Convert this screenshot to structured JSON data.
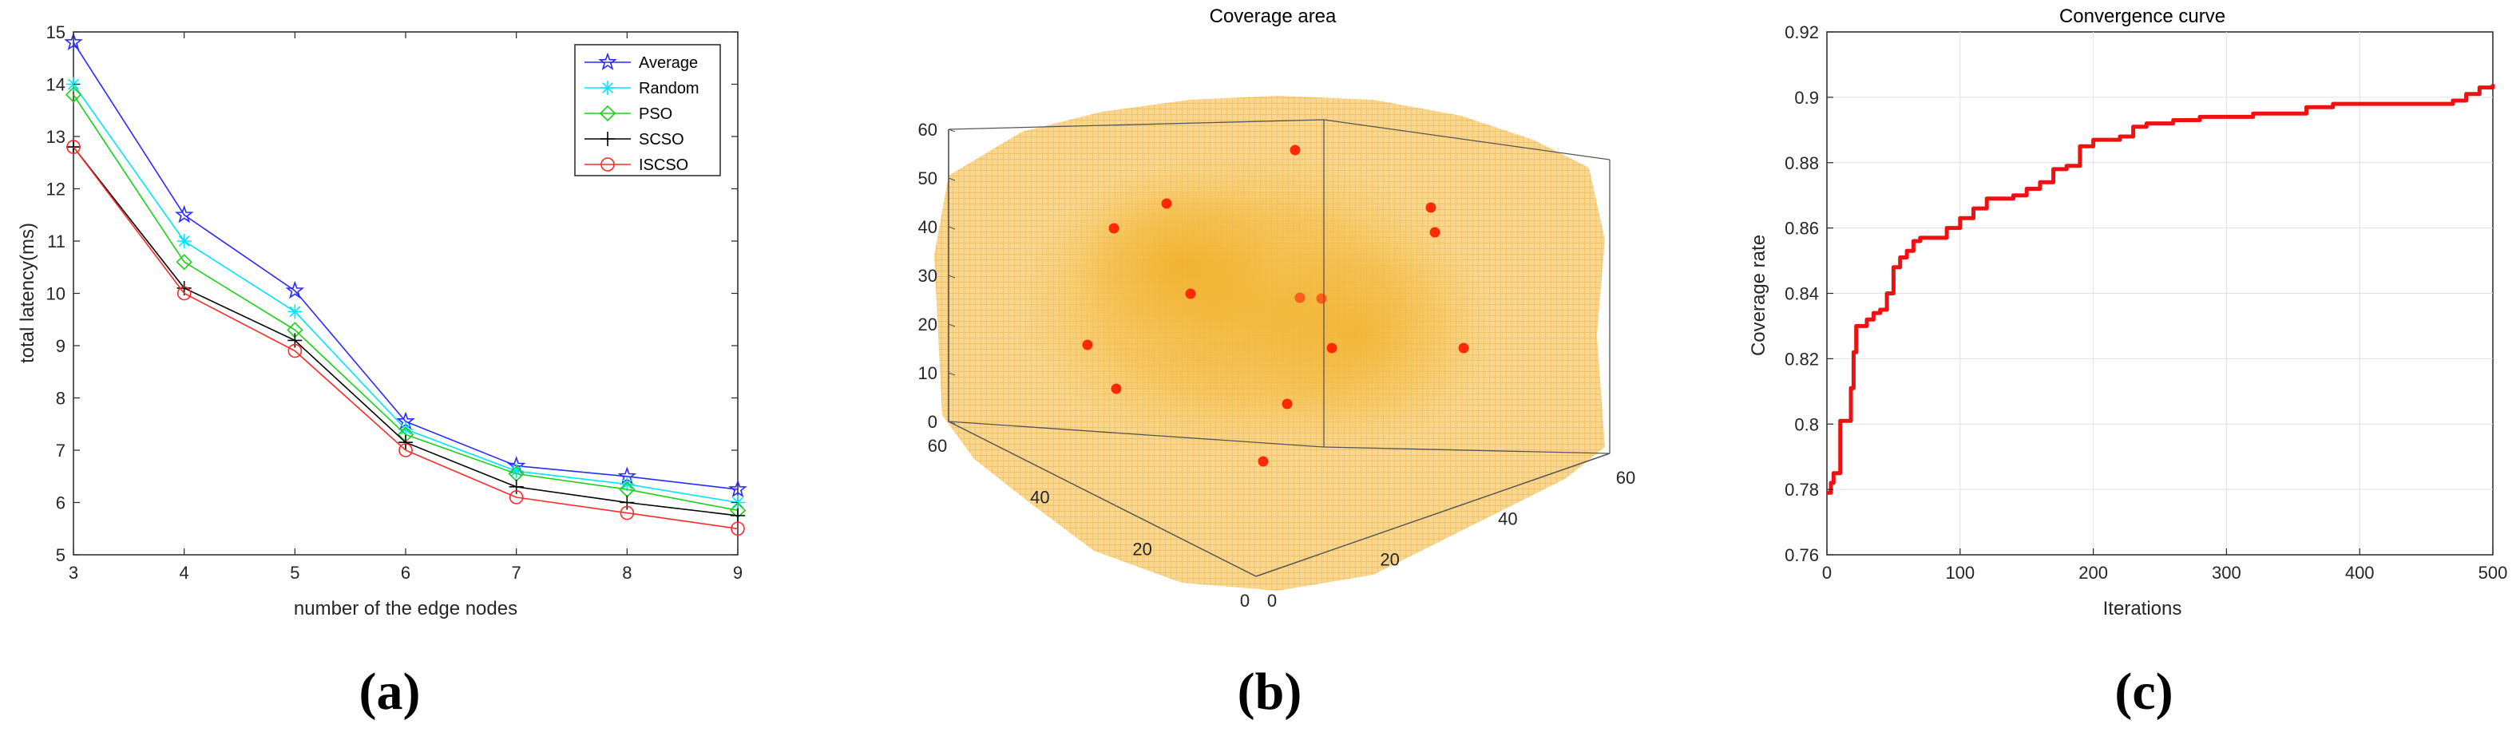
{
  "chart_data": [
    {
      "type": "line",
      "panel_label": "(a)",
      "title": "",
      "xlabel": "number of the edge nodes",
      "ylabel": "total latency(ms)",
      "xlim": [
        3,
        9
      ],
      "ylim": [
        5,
        15
      ],
      "xticks": [
        3,
        4,
        5,
        6,
        7,
        8,
        9
      ],
      "yticks": [
        5,
        6,
        7,
        8,
        9,
        10,
        11,
        12,
        13,
        14,
        15
      ],
      "legend_position": "top-right",
      "x": [
        3,
        4,
        5,
        6,
        7,
        8,
        9
      ],
      "series": [
        {
          "name": "Average",
          "color": "#2a2aff",
          "marker": "star",
          "values": [
            14.8,
            11.5,
            10.05,
            7.55,
            6.7,
            6.5,
            6.25
          ]
        },
        {
          "name": "Random",
          "color": "#00e5ff",
          "marker": "asterisk",
          "values": [
            14.0,
            11.0,
            9.65,
            7.4,
            6.6,
            6.35,
            6.0
          ]
        },
        {
          "name": "PSO",
          "color": "#19d219",
          "marker": "diamond",
          "values": [
            13.8,
            10.6,
            9.3,
            7.3,
            6.55,
            6.25,
            5.85
          ]
        },
        {
          "name": "SCSO",
          "color": "#000000",
          "marker": "plus",
          "values": [
            12.8,
            10.1,
            9.1,
            7.15,
            6.3,
            6.0,
            5.75
          ]
        },
        {
          "name": "ISCSO",
          "color": "#ff2a2a",
          "marker": "circle",
          "values": [
            12.8,
            10.0,
            8.9,
            7.0,
            6.1,
            5.8,
            5.5
          ]
        }
      ]
    },
    {
      "type": "scatter",
      "panel_label": "(b)",
      "title": "Coverage area",
      "projection": "3d",
      "zlim": [
        0,
        60
      ],
      "zticks": [
        0,
        10,
        20,
        30,
        40,
        50,
        60
      ],
      "xticks": [
        0,
        20,
        40,
        60
      ],
      "yticks": [
        0,
        20,
        40,
        60
      ],
      "fill_color": "#f2b32a",
      "point_color": "#ff2200",
      "points": [
        {
          "x": 10,
          "y": 45,
          "z": 58
        },
        {
          "x": 48,
          "y": 20,
          "z": 52
        },
        {
          "x": 52,
          "y": 18,
          "z": 50
        },
        {
          "x": 40,
          "y": 58,
          "z": 50
        },
        {
          "x": 50,
          "y": 60,
          "z": 45
        },
        {
          "x": 30,
          "y": 45,
          "z": 30
        },
        {
          "x": 20,
          "y": 30,
          "z": 28
        },
        {
          "x": 18,
          "y": 32,
          "z": 28
        },
        {
          "x": 45,
          "y": 55,
          "z": 15
        },
        {
          "x": 40,
          "y": 10,
          "z": 30
        },
        {
          "x": 55,
          "y": 5,
          "z": 30
        },
        {
          "x": 45,
          "y": 52,
          "z": 8
        },
        {
          "x": 15,
          "y": 20,
          "z": 8
        },
        {
          "x": 20,
          "y": 10,
          "z": 5
        }
      ]
    },
    {
      "type": "line",
      "panel_label": "(c)",
      "title": "Convergence curve",
      "xlabel": "Iterations",
      "ylabel": "Coverage rate",
      "xlim": [
        0,
        500
      ],
      "ylim": [
        0.76,
        0.92
      ],
      "xticks": [
        0,
        100,
        200,
        300,
        400,
        500
      ],
      "yticks": [
        0.76,
        0.78,
        0.8,
        0.82,
        0.84,
        0.86,
        0.88,
        0.9,
        0.92
      ],
      "grid": true,
      "color": "#ee1111",
      "x": [
        0,
        3,
        5,
        8,
        10,
        12,
        15,
        18,
        20,
        22,
        25,
        30,
        35,
        40,
        45,
        50,
        55,
        60,
        65,
        70,
        80,
        90,
        100,
        110,
        120,
        130,
        140,
        150,
        160,
        170,
        180,
        190,
        200,
        210,
        220,
        230,
        240,
        250,
        260,
        280,
        300,
        320,
        340,
        360,
        380,
        400,
        420,
        440,
        460,
        470,
        480,
        490,
        500
      ],
      "y": [
        0.779,
        0.782,
        0.785,
        0.785,
        0.801,
        0.801,
        0.801,
        0.811,
        0.822,
        0.83,
        0.83,
        0.832,
        0.834,
        0.835,
        0.84,
        0.848,
        0.851,
        0.853,
        0.856,
        0.857,
        0.857,
        0.86,
        0.863,
        0.866,
        0.869,
        0.869,
        0.87,
        0.872,
        0.874,
        0.878,
        0.879,
        0.885,
        0.887,
        0.887,
        0.888,
        0.891,
        0.892,
        0.892,
        0.893,
        0.894,
        0.894,
        0.895,
        0.895,
        0.897,
        0.898,
        0.898,
        0.898,
        0.898,
        0.898,
        0.899,
        0.901,
        0.903,
        0.904
      ]
    }
  ]
}
